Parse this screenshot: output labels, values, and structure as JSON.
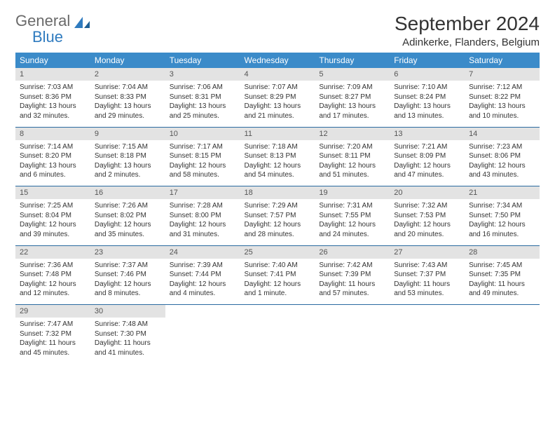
{
  "logo": {
    "general": "General",
    "blue": "Blue"
  },
  "title": "September 2024",
  "subtitle": "Adinkerke, Flanders, Belgium",
  "colors": {
    "header_bg": "#3b8bc9",
    "header_fg": "#ffffff",
    "daynum_bg": "#e3e3e3",
    "daynum_fg": "#555555",
    "row_border": "#2a6aa0",
    "logo_gray": "#6a6a6a",
    "logo_blue": "#2f7bbf"
  },
  "weekdays": [
    "Sunday",
    "Monday",
    "Tuesday",
    "Wednesday",
    "Thursday",
    "Friday",
    "Saturday"
  ],
  "weeks": [
    [
      {
        "n": "1",
        "sr": "Sunrise: 7:03 AM",
        "ss": "Sunset: 8:36 PM",
        "d1": "Daylight: 13 hours",
        "d2": "and 32 minutes."
      },
      {
        "n": "2",
        "sr": "Sunrise: 7:04 AM",
        "ss": "Sunset: 8:33 PM",
        "d1": "Daylight: 13 hours",
        "d2": "and 29 minutes."
      },
      {
        "n": "3",
        "sr": "Sunrise: 7:06 AM",
        "ss": "Sunset: 8:31 PM",
        "d1": "Daylight: 13 hours",
        "d2": "and 25 minutes."
      },
      {
        "n": "4",
        "sr": "Sunrise: 7:07 AM",
        "ss": "Sunset: 8:29 PM",
        "d1": "Daylight: 13 hours",
        "d2": "and 21 minutes."
      },
      {
        "n": "5",
        "sr": "Sunrise: 7:09 AM",
        "ss": "Sunset: 8:27 PM",
        "d1": "Daylight: 13 hours",
        "d2": "and 17 minutes."
      },
      {
        "n": "6",
        "sr": "Sunrise: 7:10 AM",
        "ss": "Sunset: 8:24 PM",
        "d1": "Daylight: 13 hours",
        "d2": "and 13 minutes."
      },
      {
        "n": "7",
        "sr": "Sunrise: 7:12 AM",
        "ss": "Sunset: 8:22 PM",
        "d1": "Daylight: 13 hours",
        "d2": "and 10 minutes."
      }
    ],
    [
      {
        "n": "8",
        "sr": "Sunrise: 7:14 AM",
        "ss": "Sunset: 8:20 PM",
        "d1": "Daylight: 13 hours",
        "d2": "and 6 minutes."
      },
      {
        "n": "9",
        "sr": "Sunrise: 7:15 AM",
        "ss": "Sunset: 8:18 PM",
        "d1": "Daylight: 13 hours",
        "d2": "and 2 minutes."
      },
      {
        "n": "10",
        "sr": "Sunrise: 7:17 AM",
        "ss": "Sunset: 8:15 PM",
        "d1": "Daylight: 12 hours",
        "d2": "and 58 minutes."
      },
      {
        "n": "11",
        "sr": "Sunrise: 7:18 AM",
        "ss": "Sunset: 8:13 PM",
        "d1": "Daylight: 12 hours",
        "d2": "and 54 minutes."
      },
      {
        "n": "12",
        "sr": "Sunrise: 7:20 AM",
        "ss": "Sunset: 8:11 PM",
        "d1": "Daylight: 12 hours",
        "d2": "and 51 minutes."
      },
      {
        "n": "13",
        "sr": "Sunrise: 7:21 AM",
        "ss": "Sunset: 8:09 PM",
        "d1": "Daylight: 12 hours",
        "d2": "and 47 minutes."
      },
      {
        "n": "14",
        "sr": "Sunrise: 7:23 AM",
        "ss": "Sunset: 8:06 PM",
        "d1": "Daylight: 12 hours",
        "d2": "and 43 minutes."
      }
    ],
    [
      {
        "n": "15",
        "sr": "Sunrise: 7:25 AM",
        "ss": "Sunset: 8:04 PM",
        "d1": "Daylight: 12 hours",
        "d2": "and 39 minutes."
      },
      {
        "n": "16",
        "sr": "Sunrise: 7:26 AM",
        "ss": "Sunset: 8:02 PM",
        "d1": "Daylight: 12 hours",
        "d2": "and 35 minutes."
      },
      {
        "n": "17",
        "sr": "Sunrise: 7:28 AM",
        "ss": "Sunset: 8:00 PM",
        "d1": "Daylight: 12 hours",
        "d2": "and 31 minutes."
      },
      {
        "n": "18",
        "sr": "Sunrise: 7:29 AM",
        "ss": "Sunset: 7:57 PM",
        "d1": "Daylight: 12 hours",
        "d2": "and 28 minutes."
      },
      {
        "n": "19",
        "sr": "Sunrise: 7:31 AM",
        "ss": "Sunset: 7:55 PM",
        "d1": "Daylight: 12 hours",
        "d2": "and 24 minutes."
      },
      {
        "n": "20",
        "sr": "Sunrise: 7:32 AM",
        "ss": "Sunset: 7:53 PM",
        "d1": "Daylight: 12 hours",
        "d2": "and 20 minutes."
      },
      {
        "n": "21",
        "sr": "Sunrise: 7:34 AM",
        "ss": "Sunset: 7:50 PM",
        "d1": "Daylight: 12 hours",
        "d2": "and 16 minutes."
      }
    ],
    [
      {
        "n": "22",
        "sr": "Sunrise: 7:36 AM",
        "ss": "Sunset: 7:48 PM",
        "d1": "Daylight: 12 hours",
        "d2": "and 12 minutes."
      },
      {
        "n": "23",
        "sr": "Sunrise: 7:37 AM",
        "ss": "Sunset: 7:46 PM",
        "d1": "Daylight: 12 hours",
        "d2": "and 8 minutes."
      },
      {
        "n": "24",
        "sr": "Sunrise: 7:39 AM",
        "ss": "Sunset: 7:44 PM",
        "d1": "Daylight: 12 hours",
        "d2": "and 4 minutes."
      },
      {
        "n": "25",
        "sr": "Sunrise: 7:40 AM",
        "ss": "Sunset: 7:41 PM",
        "d1": "Daylight: 12 hours",
        "d2": "and 1 minute."
      },
      {
        "n": "26",
        "sr": "Sunrise: 7:42 AM",
        "ss": "Sunset: 7:39 PM",
        "d1": "Daylight: 11 hours",
        "d2": "and 57 minutes."
      },
      {
        "n": "27",
        "sr": "Sunrise: 7:43 AM",
        "ss": "Sunset: 7:37 PM",
        "d1": "Daylight: 11 hours",
        "d2": "and 53 minutes."
      },
      {
        "n": "28",
        "sr": "Sunrise: 7:45 AM",
        "ss": "Sunset: 7:35 PM",
        "d1": "Daylight: 11 hours",
        "d2": "and 49 minutes."
      }
    ],
    [
      {
        "n": "29",
        "sr": "Sunrise: 7:47 AM",
        "ss": "Sunset: 7:32 PM",
        "d1": "Daylight: 11 hours",
        "d2": "and 45 minutes."
      },
      {
        "n": "30",
        "sr": "Sunrise: 7:48 AM",
        "ss": "Sunset: 7:30 PM",
        "d1": "Daylight: 11 hours",
        "d2": "and 41 minutes."
      },
      null,
      null,
      null,
      null,
      null
    ]
  ]
}
